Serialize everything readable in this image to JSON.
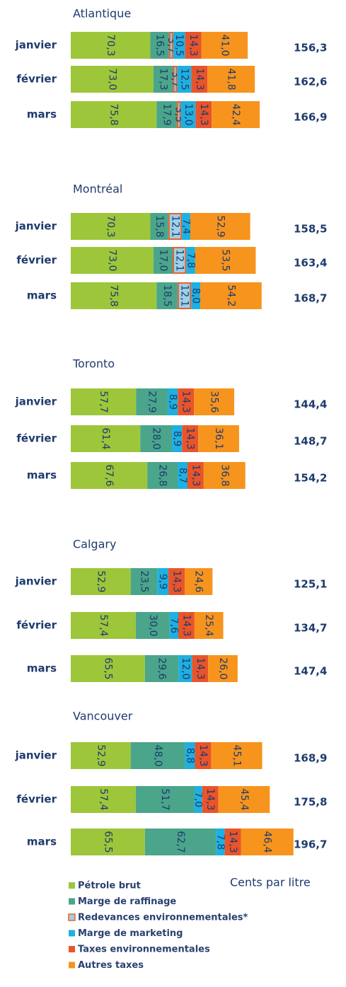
{
  "chart_data": [
    {
      "type": "bar",
      "orientation": "horizontal",
      "stacked": true,
      "title": "Atlantique",
      "categories": [
        "janvier",
        "février",
        "mars"
      ],
      "series": [
        {
          "name": "Pétrole brut",
          "color": "#9dc63a",
          "values": [
            70.3,
            73.0,
            75.8
          ],
          "value_labels": [
            "70,3",
            "73,0",
            "75,8"
          ]
        },
        {
          "name": "Marge de raffinage",
          "color": "#4aa58a",
          "values": [
            16.5,
            17.3,
            17.9
          ],
          "value_labels": [
            "16,5",
            "17,3",
            "17,9"
          ]
        },
        {
          "name": "Redevances environnementales*",
          "color": "#e8622a",
          "values": [
            3.7,
            3.7,
            3.5
          ],
          "value_labels": [
            "3,7",
            "3,7",
            "3,5"
          ]
        },
        {
          "name": "Marge de marketing",
          "color": "#1eb0e0",
          "values": [
            10.5,
            12.5,
            13.0
          ],
          "value_labels": [
            "10,5",
            "12,5",
            "13,0"
          ]
        },
        {
          "name": "Taxes environnementales",
          "color": "#e9542a",
          "values": [
            14.3,
            14.3,
            14.3
          ],
          "value_labels": [
            "14,3",
            "14,3",
            "14,3"
          ]
        },
        {
          "name": "Autres taxes",
          "color": "#f7941d",
          "values": [
            41.0,
            41.8,
            42.4
          ],
          "value_labels": [
            "41,0",
            "41,8",
            "42,4"
          ]
        }
      ],
      "totals": [
        156.3,
        162.6,
        166.9
      ],
      "total_labels": [
        "156,3",
        "162,6",
        "166,9"
      ],
      "unit_label": "Cents par litre"
    },
    {
      "type": "bar",
      "orientation": "horizontal",
      "stacked": true,
      "title": "Montréal",
      "categories": [
        "janvier",
        "février",
        "mars"
      ],
      "series": [
        {
          "name": "Pétrole brut",
          "color": "#9dc63a",
          "values": [
            70.3,
            73.0,
            75.8
          ],
          "value_labels": [
            "70,3",
            "73,0",
            "75,8"
          ]
        },
        {
          "name": "Marge de raffinage",
          "color": "#4aa58a",
          "values": [
            15.8,
            17.0,
            18.5
          ],
          "value_labels": [
            "15,8",
            "17,0",
            "18,5"
          ]
        },
        {
          "name": "Redevances environnementales*",
          "color": "#e8622a",
          "values": [
            12.1,
            12.1,
            12.1
          ],
          "value_labels": [
            "12,1",
            "12,1",
            "12,1"
          ]
        },
        {
          "name": "Marge de marketing",
          "color": "#1eb0e0",
          "values": [
            7.4,
            7.8,
            8.0
          ],
          "value_labels": [
            "7,4",
            "7,8",
            "8,0"
          ]
        },
        {
          "name": "Taxes environnementales",
          "color": "#e9542a",
          "values": [
            null,
            null,
            null
          ],
          "value_labels": [
            null,
            null,
            null
          ]
        },
        {
          "name": "Autres taxes",
          "color": "#f7941d",
          "values": [
            52.9,
            53.5,
            54.2
          ],
          "value_labels": [
            "52,9",
            "53,5",
            "54,2"
          ]
        }
      ],
      "totals": [
        158.5,
        163.4,
        168.7
      ],
      "total_labels": [
        "158,5",
        "163,4",
        "168,7"
      ]
    },
    {
      "type": "bar",
      "orientation": "horizontal",
      "stacked": true,
      "title": "Toronto",
      "categories": [
        "janvier",
        "février",
        "mars"
      ],
      "series": [
        {
          "name": "Pétrole brut",
          "color": "#9dc63a",
          "values": [
            57.7,
            61.4,
            67.6
          ],
          "value_labels": [
            "57,7",
            "61,4",
            "67,6"
          ]
        },
        {
          "name": "Marge de raffinage",
          "color": "#4aa58a",
          "values": [
            27.9,
            28.0,
            26.8
          ],
          "value_labels": [
            "27,9",
            "28,0",
            "26,8"
          ]
        },
        {
          "name": "Redevances environnementales*",
          "color": "#e8622a",
          "values": [
            null,
            null,
            null
          ],
          "value_labels": [
            null,
            null,
            null
          ]
        },
        {
          "name": "Marge de marketing",
          "color": "#1eb0e0",
          "values": [
            8.9,
            8.9,
            8.7
          ],
          "value_labels": [
            "8,9",
            "8,9",
            "8,7"
          ]
        },
        {
          "name": "Taxes environnementales",
          "color": "#e9542a",
          "values": [
            14.3,
            14.3,
            14.3
          ],
          "value_labels": [
            "14,3",
            "14,3",
            "14,3"
          ]
        },
        {
          "name": "Autres taxes",
          "color": "#f7941d",
          "values": [
            35.6,
            36.1,
            36.8
          ],
          "value_labels": [
            "35,6",
            "36,1",
            "36,8"
          ]
        }
      ],
      "totals": [
        144.4,
        148.7,
        154.2
      ],
      "total_labels": [
        "144,4",
        "148,7",
        "154,2"
      ]
    },
    {
      "type": "bar",
      "orientation": "horizontal",
      "stacked": true,
      "title": "Calgary",
      "categories": [
        "janvier",
        "février",
        "mars"
      ],
      "series": [
        {
          "name": "Pétrole brut",
          "color": "#9dc63a",
          "values": [
            52.9,
            57.4,
            65.5
          ],
          "value_labels": [
            "52,9",
            "57,4",
            "65,5"
          ]
        },
        {
          "name": "Marge de raffinage",
          "color": "#4aa58a",
          "values": [
            23.5,
            30.0,
            29.6
          ],
          "value_labels": [
            "23,5",
            "30,0",
            "29,6"
          ]
        },
        {
          "name": "Redevances environnementales*",
          "color": "#e8622a",
          "values": [
            null,
            null,
            null
          ],
          "value_labels": [
            null,
            null,
            null
          ]
        },
        {
          "name": "Marge de marketing",
          "color": "#1eb0e0",
          "values": [
            9.9,
            7.6,
            12.0
          ],
          "value_labels": [
            "9,9",
            "7,6",
            "12,0"
          ]
        },
        {
          "name": "Taxes environnementales",
          "color": "#e9542a",
          "values": [
            14.3,
            14.3,
            14.3
          ],
          "value_labels": [
            "14,3",
            "14,3",
            "14,3"
          ]
        },
        {
          "name": "Autres taxes",
          "color": "#f7941d",
          "values": [
            24.6,
            25.4,
            26.0
          ],
          "value_labels": [
            "24,6",
            "25,4",
            "26,0"
          ]
        }
      ],
      "totals": [
        125.1,
        134.7,
        147.4
      ],
      "total_labels": [
        "125,1",
        "134,7",
        "147,4"
      ]
    },
    {
      "type": "bar",
      "orientation": "horizontal",
      "stacked": true,
      "title": "Vancouver",
      "categories": [
        "janvier",
        "février",
        "mars"
      ],
      "series": [
        {
          "name": "Pétrole brut",
          "color": "#9dc63a",
          "values": [
            52.9,
            57.4,
            65.5
          ],
          "value_labels": [
            "52,9",
            "57,4",
            "65,5"
          ]
        },
        {
          "name": "Marge de raffinage",
          "color": "#4aa58a",
          "values": [
            48.0,
            51.7,
            62.7
          ],
          "value_labels": [
            "48,0",
            "51,7",
            "62,7"
          ]
        },
        {
          "name": "Redevances environnementales*",
          "color": "#e8622a",
          "values": [
            null,
            null,
            null
          ],
          "value_labels": [
            null,
            null,
            null
          ]
        },
        {
          "name": "Marge de marketing",
          "color": "#1eb0e0",
          "values": [
            8.8,
            7.0,
            7.8
          ],
          "value_labels": [
            "8,8",
            "7,0",
            "7,8"
          ]
        },
        {
          "name": "Taxes environnementales",
          "color": "#e9542a",
          "values": [
            14.3,
            14.3,
            14.3
          ],
          "value_labels": [
            "14,3",
            "14,3",
            "14,3"
          ]
        },
        {
          "name": "Autres taxes",
          "color": "#f7941d",
          "values": [
            45.1,
            45.4,
            46.4
          ],
          "value_labels": [
            "45,1",
            "45,4",
            "46,4"
          ]
        }
      ],
      "totals": [
        168.9,
        175.8,
        196.7
      ],
      "total_labels": [
        "168,9",
        "175,8",
        "196,7"
      ]
    }
  ]
}
